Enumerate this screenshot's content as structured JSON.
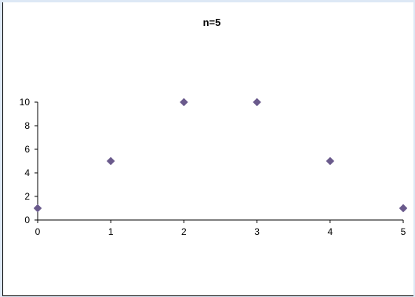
{
  "chart_data": {
    "type": "scatter",
    "title": "n=5",
    "xlabel": "",
    "ylabel": "",
    "x": [
      0,
      1,
      2,
      3,
      4,
      5
    ],
    "y": [
      1,
      5,
      10,
      10,
      5,
      1
    ],
    "xlim": [
      0,
      5
    ],
    "ylim": [
      0,
      10
    ],
    "x_ticks": [
      0,
      1,
      2,
      3,
      4,
      5
    ],
    "y_ticks": [
      0,
      2,
      4,
      6,
      8,
      10
    ],
    "grid": false,
    "legend": "none",
    "marker": "diamond",
    "marker_color": "#6a5a8c",
    "frame_color": "#dde8f5"
  }
}
